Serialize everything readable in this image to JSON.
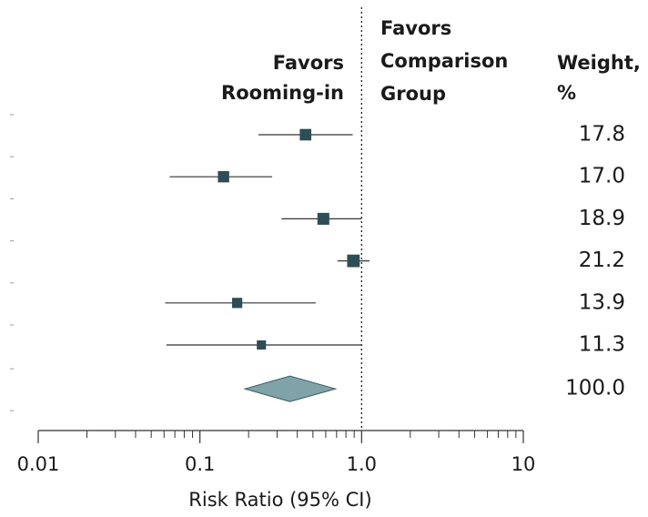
{
  "chart_data": {
    "type": "forest",
    "xlabel": "Risk Ratio (95% CI)",
    "xscale": "log",
    "xlim": [
      0.01,
      10
    ],
    "xticks": [
      0.01,
      0.1,
      {
        "value": 1,
        "label": "1.0"
      },
      10
    ],
    "minor_xticks": [
      0.02,
      0.03,
      0.04,
      0.05,
      0.06,
      0.07,
      0.08,
      0.09,
      0.2,
      0.3,
      0.4,
      0.5,
      0.6,
      0.7,
      0.8,
      0.9,
      2,
      3,
      4,
      5,
      6,
      7,
      8,
      9
    ],
    "reference_line": 1,
    "left_header": [
      "Favors",
      "Rooming-in"
    ],
    "right_header": [
      "Favors",
      "Comparison",
      "Group"
    ],
    "weight_header": [
      "Weight,",
      "%"
    ],
    "color": "#2e4d54",
    "pooled_color": "#7fa3a8",
    "studies": {
      "values": [
        0.45,
        0.14,
        0.58,
        0.89,
        0.17,
        0.24
      ],
      "lower": [
        0.23,
        0.065,
        0.32,
        0.71,
        0.061,
        0.062
      ],
      "upper": [
        0.88,
        0.28,
        1.0,
        1.12,
        0.52,
        1.0
      ],
      "weights": [
        17.8,
        17.0,
        18.9,
        21.2,
        13.9,
        11.3
      ],
      "weight_labels": [
        "17.8",
        "17.0",
        "18.9",
        "21.2",
        "13.9",
        "11.3"
      ]
    },
    "pooled": {
      "value": 0.36,
      "lower": 0.19,
      "upper": 0.69,
      "weight": 100,
      "weight_label": "100.0"
    }
  }
}
